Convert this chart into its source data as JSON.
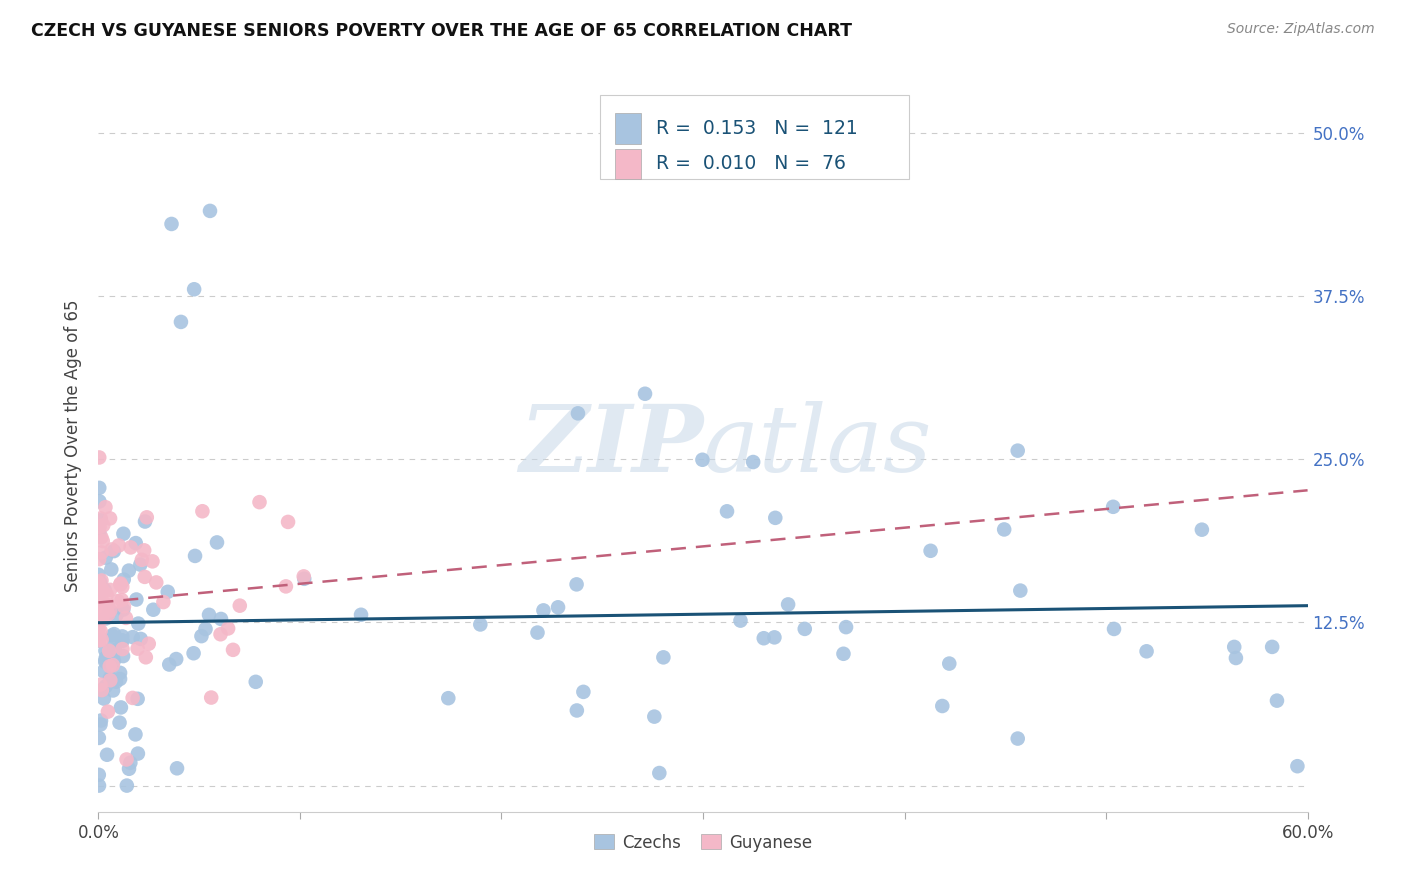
{
  "title": "CZECH VS GUYANESE SENIORS POVERTY OVER THE AGE OF 65 CORRELATION CHART",
  "source": "Source: ZipAtlas.com",
  "ylabel": "Seniors Poverty Over the Age of 65",
  "xlim": [
    0.0,
    0.6
  ],
  "ylim": [
    -0.02,
    0.54
  ],
  "yticks": [
    0.0,
    0.125,
    0.25,
    0.375,
    0.5
  ],
  "ytick_labels": [
    "",
    "12.5%",
    "25.0%",
    "37.5%",
    "50.0%"
  ],
  "grid_color": "#cccccc",
  "background_color": "#ffffff",
  "watermark_zip": "ZIP",
  "watermark_atlas": "atlas",
  "czech_color": "#a8c4e0",
  "czech_line_color": "#1a5276",
  "guyanese_color": "#f4b8c8",
  "guyanese_line_color": "#c0607a",
  "czech_R": 0.153,
  "czech_N": 121,
  "guyanese_R": 0.01,
  "guyanese_N": 76,
  "czech_seed": 7,
  "guyanese_seed": 13
}
